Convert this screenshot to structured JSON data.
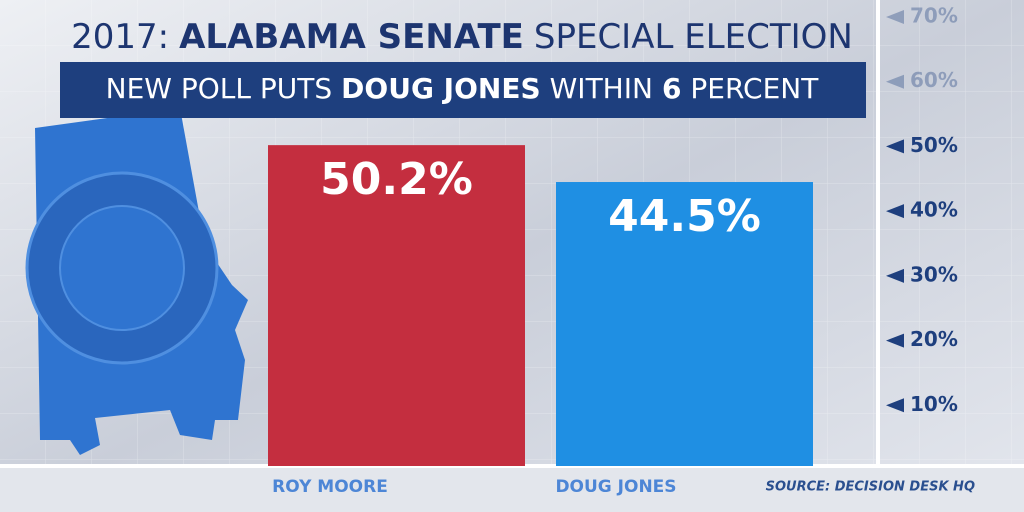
{
  "chart_data": {
    "type": "bar",
    "title": [
      "2017:",
      "ALABAMA SENATE",
      "SPECIAL ELECTION"
    ],
    "subtitle": [
      "NEW POLL PUTS",
      "DOUG JONES",
      "WITHIN",
      "6",
      "PERCENT"
    ],
    "categories": [
      "ROY MOORE",
      "DOUG JONES"
    ],
    "values": [
      50.2,
      44.5
    ],
    "value_labels": [
      "50.2%",
      "44.5%"
    ],
    "colors": [
      "#c42e3f",
      "#1f8fe3"
    ],
    "ylim": [
      0,
      70
    ],
    "yticks": [
      {
        "value": 10,
        "label": "10%"
      },
      {
        "value": 20,
        "label": "20%"
      },
      {
        "value": 30,
        "label": "30%"
      },
      {
        "value": 40,
        "label": "40%"
      },
      {
        "value": 50,
        "label": "50%"
      },
      {
        "value": 60,
        "label": "60%"
      },
      {
        "value": 70,
        "label": "70%"
      }
    ],
    "source": "SOURCE: DECISION DESK HQ"
  }
}
